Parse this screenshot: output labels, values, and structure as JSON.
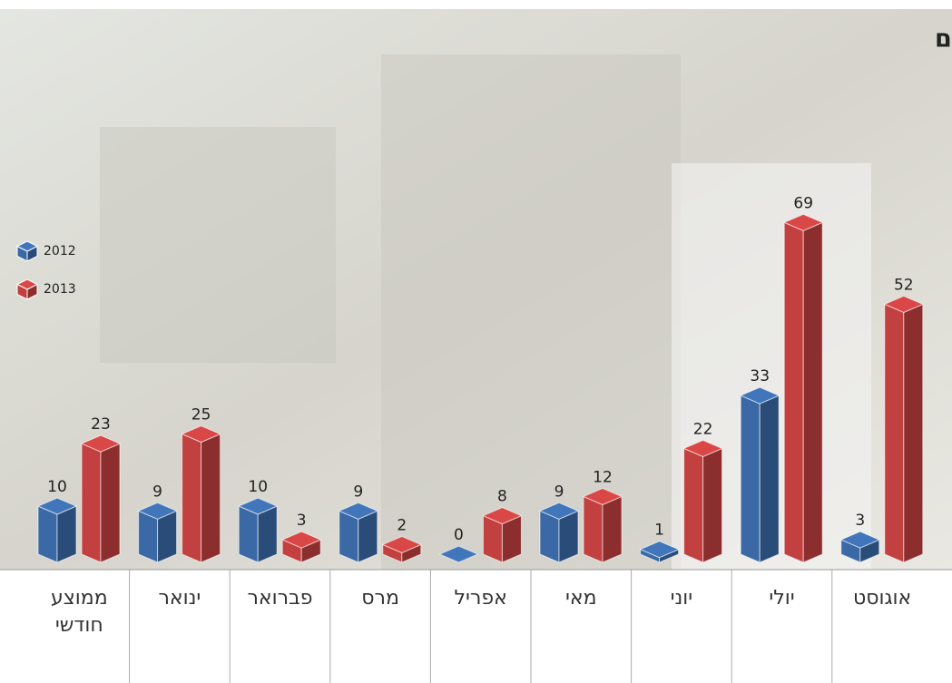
{
  "chart_data": {
    "type": "bar3d",
    "title": "מקרי פציעה של פלסטינים במהלך מבצעי חיפושים ומעצרים",
    "categories": [
      "ממוצע חודשי",
      "ינואר",
      "פברואר",
      "מרס",
      "אפריל",
      "מאי",
      "יוני",
      "יולי",
      "אוגוסט"
    ],
    "series": [
      {
        "name": "2012",
        "color": "#3a69a6",
        "values": [
          10,
          9,
          10,
          9,
          0,
          9,
          1,
          33,
          3
        ]
      },
      {
        "name": "2013",
        "color": "#c2403f",
        "values": [
          23,
          25,
          3,
          2,
          8,
          12,
          22,
          69,
          52
        ]
      }
    ]
  }
}
